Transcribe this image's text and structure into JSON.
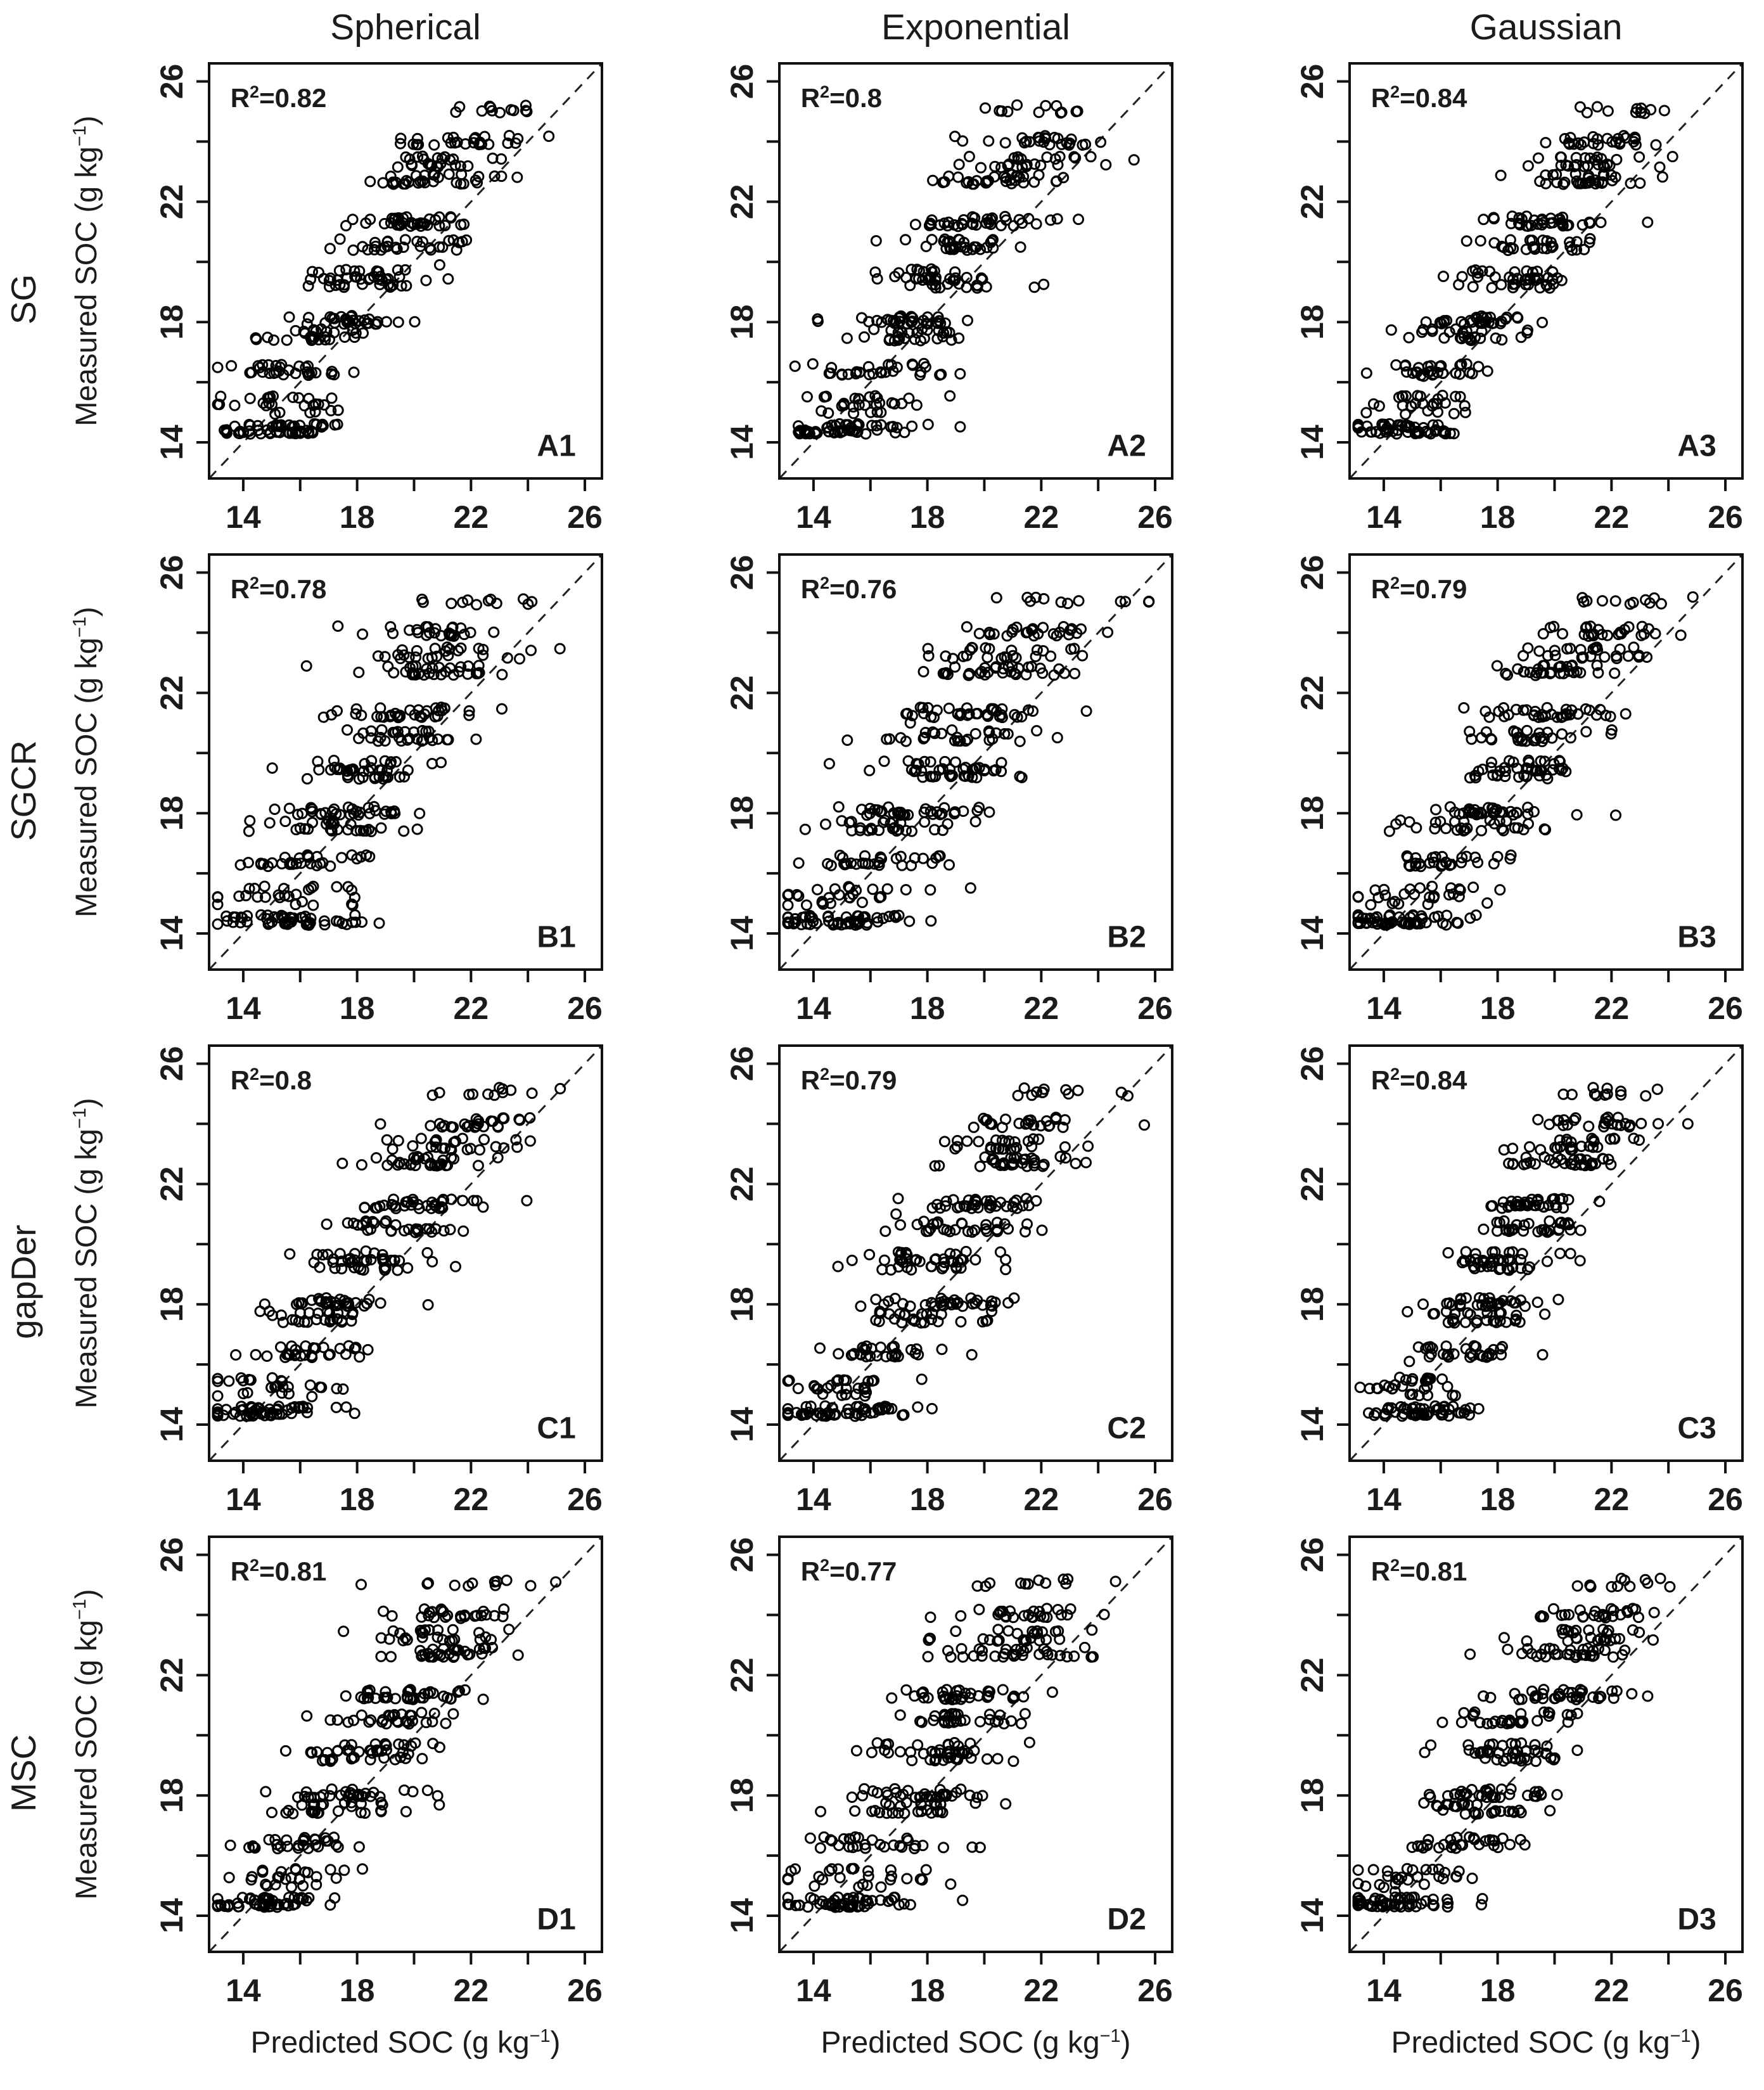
{
  "figure": {
    "column_titles": [
      "Spherical",
      "Exponential",
      "Gaussian"
    ],
    "row_labels": [
      "SG",
      "SGCR",
      "gapDer",
      "MSC"
    ],
    "x_axis_title": {
      "main": "Predicted SOC (g kg",
      "sup": "−1",
      "close": ")"
    },
    "y_axis_title": {
      "main": "Measured  SOC (g kg",
      "sup": "−1",
      "close": ")"
    },
    "colors": {
      "text": "#1b1b1b",
      "points": "#000000",
      "identity_line": "#222222",
      "frame": "#111111"
    }
  },
  "chart_data": {
    "type": "scatter",
    "xlabel": "Predicted SOC (g kg-1)",
    "ylabel": "Measured SOC (g kg-1)",
    "axis_range": [
      12.8,
      26.6
    ],
    "tick_values": [
      14,
      16,
      18,
      20,
      22,
      24,
      26
    ],
    "tick_labels": [
      "14",
      "",
      "18",
      "",
      "22",
      "",
      "26"
    ],
    "grid": false,
    "r2_base": "R",
    "r2_sup": "2",
    "identity_line": {
      "style": "dashed",
      "from": 12.8,
      "to": 26.6
    },
    "points_model": {
      "slope": 0.7,
      "intercept": 4.8,
      "cluster_jitter": 0.07,
      "cluster_shift_sd": 0.4,
      "x_min": 13.1,
      "x_max": 26.1,
      "y_clusters": [
        [
          14.35,
          32
        ],
        [
          14.55,
          22
        ],
        [
          15.0,
          6
        ],
        [
          15.25,
          12
        ],
        [
          15.5,
          10
        ],
        [
          16.3,
          18
        ],
        [
          16.55,
          12
        ],
        [
          17.45,
          16
        ],
        [
          17.7,
          12
        ],
        [
          18.0,
          22
        ],
        [
          18.15,
          10
        ],
        [
          19.2,
          14
        ],
        [
          19.45,
          20
        ],
        [
          19.7,
          10
        ],
        [
          20.45,
          18
        ],
        [
          20.7,
          12
        ],
        [
          21.25,
          22
        ],
        [
          21.45,
          14
        ],
        [
          22.65,
          20
        ],
        [
          22.85,
          12
        ],
        [
          23.2,
          14
        ],
        [
          23.45,
          12
        ],
        [
          23.95,
          16
        ],
        [
          24.15,
          10
        ],
        [
          25.0,
          8
        ],
        [
          25.15,
          4
        ]
      ]
    },
    "panels": [
      {
        "id": "A1",
        "row": "SG",
        "col": "Spherical",
        "r2": 0.82,
        "r2_eq": "=0.82",
        "seed": 101,
        "outliers": [
          [
            15.6,
            16.4
          ],
          [
            20.9,
            19.9
          ]
        ]
      },
      {
        "id": "A2",
        "row": "SG",
        "col": "Exponential",
        "r2": 0.8,
        "r2_eq": "=0.8",
        "seed": 102,
        "outliers": [
          [
            16.2,
            20.7
          ],
          [
            14.6,
            16.3
          ]
        ]
      },
      {
        "id": "A3",
        "row": "SG",
        "col": "Gaussian",
        "r2": 0.84,
        "r2_eq": "=0.84",
        "seed": 103,
        "outliers": [
          [
            15.4,
            16.2
          ],
          [
            17.4,
            20.7
          ]
        ]
      },
      {
        "id": "B1",
        "row": "SGCR",
        "col": "Spherical",
        "r2": 0.78,
        "r2_eq": "=0.78",
        "seed": 104,
        "outliers": [
          [
            14.2,
            17.4
          ],
          [
            16.0,
            17.5
          ]
        ]
      },
      {
        "id": "B2",
        "row": "SGCR",
        "col": "Exponential",
        "r2": 0.76,
        "r2_eq": "=0.76",
        "seed": 105,
        "outliers": [
          [
            17.4,
            21.0
          ],
          [
            14.6,
            15.0
          ]
        ]
      },
      {
        "id": "B3",
        "row": "SGCR",
        "col": "Gaussian",
        "r2": 0.79,
        "r2_eq": "=0.79",
        "seed": 106,
        "outliers": [
          [
            14.2,
            17.4
          ],
          [
            16.8,
            18.0
          ]
        ]
      },
      {
        "id": "C1",
        "row": "gapDer",
        "col": "Spherical",
        "r2": 0.8,
        "r2_eq": "=0.8",
        "seed": 107,
        "outliers": [
          [
            13.4,
            14.5
          ],
          [
            14.0,
            14.5
          ]
        ]
      },
      {
        "id": "C2",
        "row": "gapDer",
        "col": "Exponential",
        "r2": 0.79,
        "r2_eq": "=0.79",
        "seed": 108,
        "outliers": [
          [
            13.4,
            14.4
          ],
          [
            16.9,
            21.0
          ]
        ]
      },
      {
        "id": "C3",
        "row": "gapDer",
        "col": "Gaussian",
        "r2": 0.84,
        "r2_eq": "=0.84",
        "seed": 109,
        "outliers": [
          [
            13.5,
            15.2
          ],
          [
            14.9,
            16.1
          ]
        ]
      },
      {
        "id": "D1",
        "row": "MSC",
        "col": "Spherical",
        "r2": 0.81,
        "r2_eq": "=0.81",
        "seed": 110,
        "outliers": [
          [
            15.0,
            14.4
          ],
          [
            20.9,
            19.6
          ]
        ]
      },
      {
        "id": "D2",
        "row": "MSC",
        "col": "Exponential",
        "r2": 0.77,
        "r2_eq": "=0.77",
        "seed": 111,
        "outliers": [
          [
            13.9,
            14.6
          ],
          [
            16.5,
            19.5
          ]
        ]
      },
      {
        "id": "D3",
        "row": "MSC",
        "col": "Gaussian",
        "r2": 0.81,
        "r2_eq": "=0.81",
        "seed": 112,
        "outliers": [
          [
            14.4,
            14.8
          ],
          [
            20.8,
            19.5
          ]
        ]
      }
    ]
  }
}
